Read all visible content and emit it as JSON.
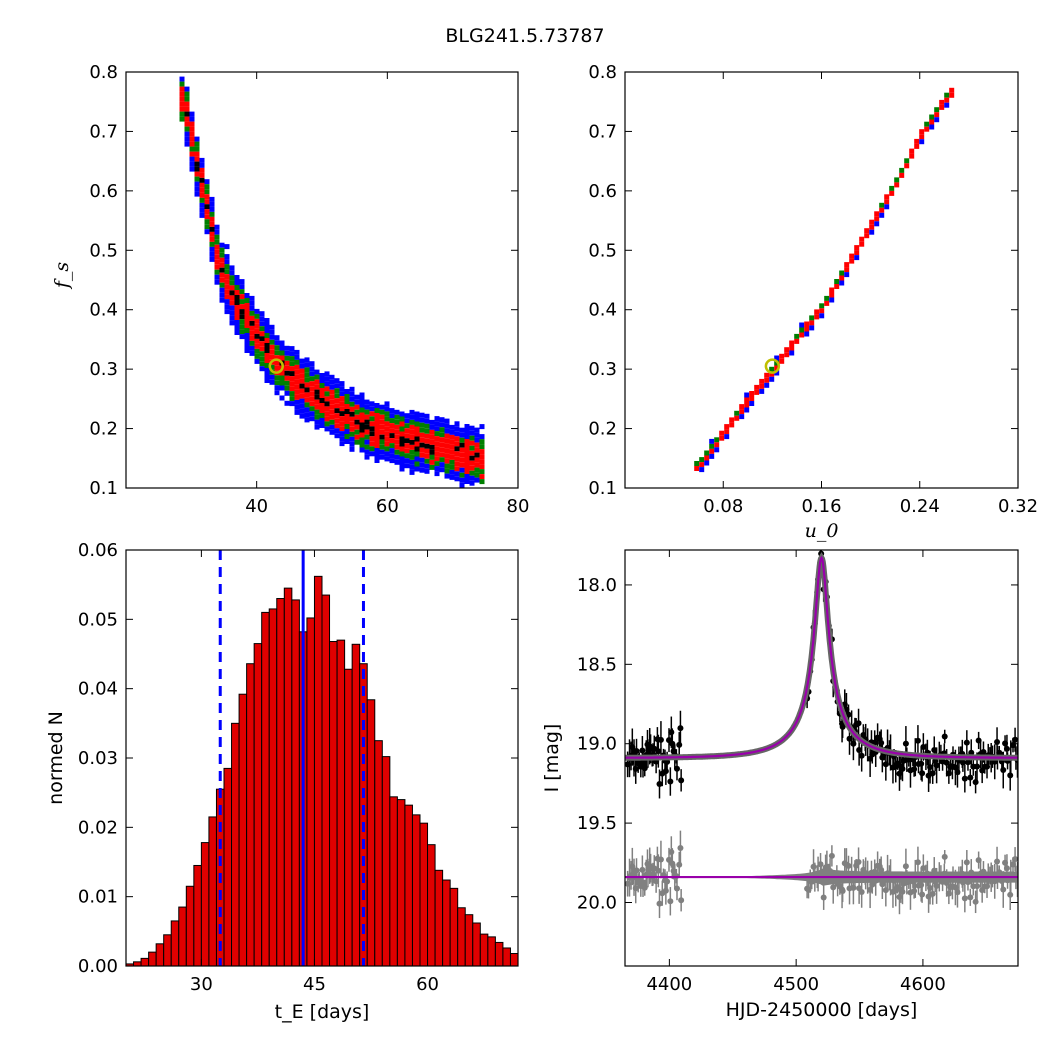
{
  "figure": {
    "title": "BLG241.5.73787"
  },
  "chart_data": [
    {
      "type": "heatmap",
      "panel": "top-left",
      "xlabel": "",
      "ylabel": "f_s",
      "xlim": [
        20,
        80
      ],
      "ylim": [
        0.1,
        0.8
      ],
      "xticks": [
        "40",
        "60",
        "80"
      ],
      "yticks": [
        "0.1",
        "0.2",
        "0.3",
        "0.4",
        "0.5",
        "0.6",
        "0.7",
        "0.8"
      ],
      "confidence_colors": [
        "#0000ff",
        "#007f00",
        "#ff0000",
        "#000000"
      ],
      "best_fit_marker": {
        "x": 43.0,
        "y": 0.305,
        "color": "#bfbf00"
      },
      "ridge": [
        [
          28.5,
          0.76
        ],
        [
          30.5,
          0.65
        ],
        [
          32,
          0.58
        ],
        [
          34,
          0.48
        ],
        [
          36,
          0.43
        ],
        [
          38,
          0.39
        ],
        [
          40,
          0.355
        ],
        [
          42,
          0.325
        ],
        [
          45,
          0.29
        ],
        [
          48,
          0.265
        ],
        [
          52,
          0.235
        ],
        [
          56,
          0.21
        ],
        [
          60,
          0.195
        ],
        [
          64,
          0.18
        ],
        [
          68,
          0.17
        ],
        [
          72,
          0.158
        ],
        [
          74,
          0.15
        ]
      ],
      "band_widths": [
        0.05,
        0.032,
        0.022,
        0.007
      ]
    },
    {
      "type": "heatmap",
      "panel": "top-right",
      "xlabel": "u_0",
      "ylabel": "",
      "xlim": [
        0.0,
        0.32
      ],
      "ylim": [
        0.1,
        0.8
      ],
      "xticks": [
        "0.08",
        "0.16",
        "0.24",
        "0.32"
      ],
      "yticks": [
        "0.1",
        "0.2",
        "0.3",
        "0.4",
        "0.5",
        "0.6",
        "0.7",
        "0.8"
      ],
      "confidence_colors": [
        "#0000ff",
        "#007f00",
        "#ff0000",
        "#000000"
      ],
      "best_fit_marker": {
        "x": 0.12,
        "y": 0.305,
        "color": "#bfbf00"
      },
      "ridge": [
        [
          0.058,
          0.14
        ],
        [
          0.08,
          0.2
        ],
        [
          0.1,
          0.255
        ],
        [
          0.12,
          0.305
        ],
        [
          0.14,
          0.36
        ],
        [
          0.16,
          0.41
        ],
        [
          0.18,
          0.48
        ],
        [
          0.2,
          0.55
        ],
        [
          0.22,
          0.62
        ],
        [
          0.24,
          0.7
        ],
        [
          0.26,
          0.76
        ],
        [
          0.265,
          0.77
        ]
      ],
      "band_widths": [
        0.012,
        0.008,
        0.0055,
        0.0015
      ]
    },
    {
      "type": "bar",
      "panel": "bottom-left",
      "xlabel": "t_E  [days]",
      "ylabel": "normed N",
      "xlim": [
        20,
        72
      ],
      "ylim": [
        0,
        0.06
      ],
      "xticks": [
        "30",
        "45",
        "60"
      ],
      "yticks": [
        "0.00",
        "0.01",
        "0.02",
        "0.03",
        "0.04",
        "0.05",
        "0.06"
      ],
      "bin_width": 1,
      "bin_start": 20,
      "values": [
        0.0003,
        0.0006,
        0.0011,
        0.002,
        0.0032,
        0.0045,
        0.0065,
        0.0085,
        0.0115,
        0.0145,
        0.0178,
        0.0215,
        0.0255,
        0.0285,
        0.035,
        0.0392,
        0.0436,
        0.0465,
        0.051,
        0.0515,
        0.053,
        0.0545,
        0.0528,
        0.0482,
        0.0502,
        0.0562,
        0.0535,
        0.0468,
        0.047,
        0.0428,
        0.0464,
        0.0436,
        0.0384,
        0.0325,
        0.0302,
        0.0244,
        0.024,
        0.0232,
        0.0218,
        0.0206,
        0.0175,
        0.0138,
        0.0124,
        0.0112,
        0.0084,
        0.0074,
        0.0062,
        0.0046,
        0.0042,
        0.0034,
        0.0026,
        0.0018,
        0.0013,
        0.0009,
        0.0006,
        0.0004,
        0.0003,
        0.0002
      ],
      "median_line": 43.5,
      "dashed_lines": [
        32.5,
        51.5
      ],
      "bar_color": "#e00000",
      "line_color": "#0000ff"
    },
    {
      "type": "scatter",
      "panel": "bottom-right",
      "xlabel": "HJD-2450000 [days]",
      "ylabel": "I [mag]",
      "xlim": [
        4365,
        4675
      ],
      "ylim": [
        20.4,
        17.78
      ],
      "xticks": [
        "4400",
        "4500",
        "4600"
      ],
      "yticks": [
        "18.0",
        "18.5",
        "19.0",
        "19.5",
        "20.0"
      ],
      "model": {
        "t0": 4520,
        "base": 19.09,
        "peak": 17.83,
        "tE": 44,
        "u0": 0.12,
        "color": "#9900aa"
      },
      "residual_baseline": 19.84,
      "data_color": "#000000",
      "residual_color": "#808080"
    }
  ]
}
